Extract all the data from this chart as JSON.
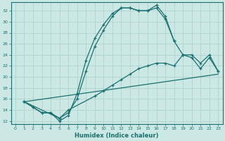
{
  "xlabel": "Humidex (Indice chaleur)",
  "bg_color": "#cce8e4",
  "grid_color": "#aacfcb",
  "line_color": "#1a7070",
  "xlim": [
    -0.5,
    23.5
  ],
  "ylim": [
    11.5,
    33.5
  ],
  "xticks": [
    0,
    1,
    2,
    3,
    4,
    5,
    6,
    7,
    8,
    9,
    10,
    11,
    12,
    13,
    14,
    15,
    16,
    17,
    18,
    19,
    20,
    21,
    22,
    23
  ],
  "yticks": [
    12,
    14,
    16,
    18,
    20,
    22,
    24,
    26,
    28,
    30,
    32
  ],
  "curve1_x": [
    1,
    2,
    3,
    4,
    5,
    6,
    7,
    8,
    9,
    10,
    11,
    12,
    13,
    14,
    15,
    16,
    17,
    18
  ],
  "curve1_y": [
    15.5,
    14.5,
    13.5,
    13.5,
    12.0,
    13.0,
    17.0,
    23.0,
    27.0,
    29.5,
    31.5,
    32.5,
    32.5,
    32.0,
    32.0,
    33.0,
    31.0,
    26.5
  ],
  "curve2_x": [
    1,
    2,
    3,
    4,
    5,
    6,
    7,
    8,
    9,
    10,
    11,
    12,
    13,
    14,
    15,
    16,
    17,
    18,
    19,
    20,
    21,
    22,
    23
  ],
  "curve2_y": [
    15.5,
    14.5,
    13.5,
    13.5,
    12.5,
    13.5,
    16.0,
    21.0,
    25.5,
    28.5,
    31.0,
    32.5,
    32.5,
    32.0,
    32.0,
    32.5,
    30.5,
    26.5,
    24.0,
    23.5,
    21.5,
    23.5,
    21.0
  ],
  "curve3_x": [
    1,
    5,
    6,
    9,
    10,
    11,
    12,
    13,
    14,
    15,
    16,
    17,
    18,
    19,
    20,
    21,
    22,
    23
  ],
  "curve3_y": [
    15.5,
    12.5,
    14.0,
    16.5,
    17.5,
    18.5,
    19.5,
    20.5,
    21.5,
    22.0,
    22.5,
    22.5,
    22.0,
    24.0,
    24.0,
    22.5,
    24.0,
    21.0
  ],
  "curve4_x": [
    1,
    23
  ],
  "curve4_y": [
    15.5,
    20.5
  ]
}
